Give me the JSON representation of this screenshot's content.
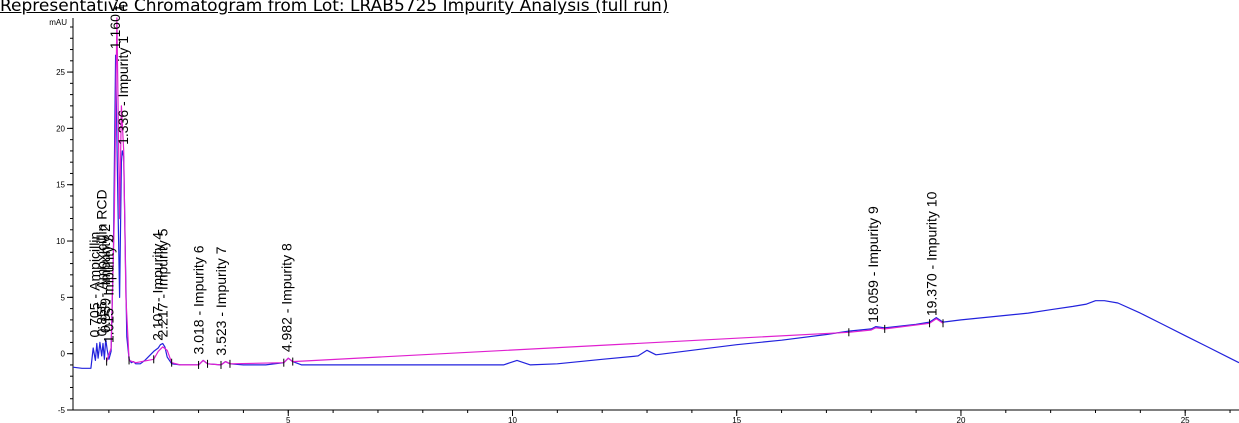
{
  "chart_data": {
    "type": "line",
    "title": "Representative Chromatogram from Lot:   LRAB5725 Impurity Analysis (full run)",
    "ylabel": "mAU",
    "xlabel": "",
    "xlim": [
      0.2,
      26.2
    ],
    "ylim": [
      -5,
      29.8
    ],
    "x_ticks": [
      5,
      10,
      15,
      20,
      25
    ],
    "y_ticks": [
      -5,
      0,
      5,
      10,
      15,
      20,
      25
    ],
    "x_minor_step": 1,
    "y_minor_step": 1,
    "grid": false,
    "series": [
      {
        "color": "#2222dd",
        "x": [
          0.2,
          0.4,
          0.6,
          0.65,
          0.7,
          0.73,
          0.76,
          0.8,
          0.84,
          0.87,
          0.9,
          0.93,
          0.96,
          1.0,
          1.05,
          1.1,
          1.15,
          1.2,
          1.24,
          1.28,
          1.3,
          1.33,
          1.37,
          1.4,
          1.45,
          1.5,
          1.55,
          1.6,
          1.65,
          1.7,
          1.8,
          2.0,
          2.1,
          2.15,
          2.2,
          2.25,
          2.3,
          2.4,
          2.6,
          3.0,
          3.1,
          3.2,
          3.5,
          3.6,
          3.7,
          4.0,
          4.5,
          4.9,
          5.0,
          5.1,
          5.3,
          6.0,
          7.0,
          8.0,
          9.0,
          9.8,
          10.1,
          10.4,
          11.0,
          12.0,
          12.8,
          13.0,
          13.2,
          14.0,
          15.0,
          16.0,
          17.0,
          17.5,
          18.0,
          18.1,
          18.3,
          19.0,
          19.3,
          19.45,
          19.6,
          20.0,
          20.5,
          21.0,
          21.5,
          22.0,
          22.5,
          22.8,
          23.0,
          23.2,
          23.5,
          24.0,
          24.5,
          25.0,
          25.5,
          26.0,
          26.2
        ],
        "y": [
          -1.2,
          -1.3,
          -1.3,
          0.5,
          -0.6,
          0.9,
          -0.4,
          1.0,
          -0.2,
          0.9,
          -0.5,
          1.3,
          0.4,
          -0.5,
          0.2,
          9.0,
          26.5,
          14.0,
          5.0,
          17.0,
          18.0,
          17.5,
          8.0,
          1.5,
          -0.5,
          -0.8,
          -0.7,
          -0.9,
          -0.9,
          -0.9,
          -0.6,
          0.2,
          0.5,
          0.8,
          0.9,
          0.6,
          -0.3,
          -0.9,
          -1.0,
          -1.0,
          -0.6,
          -0.9,
          -1.0,
          -0.7,
          -0.9,
          -1.0,
          -1.0,
          -0.8,
          -0.4,
          -0.7,
          -1.0,
          -1.0,
          -1.0,
          -1.0,
          -1.0,
          -1.0,
          -0.6,
          -1.0,
          -0.9,
          -0.5,
          -0.2,
          0.3,
          -0.1,
          0.3,
          0.8,
          1.2,
          1.7,
          2.0,
          2.2,
          2.4,
          2.3,
          2.6,
          2.8,
          3.2,
          2.8,
          3.0,
          3.2,
          3.4,
          3.6,
          3.9,
          4.2,
          4.4,
          4.7,
          4.7,
          4.5,
          3.6,
          2.6,
          1.6,
          0.6,
          -0.4,
          -0.8
        ]
      },
      {
        "color": "#e020d0",
        "x": [
          0.95,
          1.05,
          1.12,
          1.18,
          1.24,
          1.28,
          1.33,
          1.38,
          1.45,
          1.6,
          2.0,
          2.1,
          2.2,
          2.3,
          2.4,
          2.6,
          3.0,
          3.1,
          3.2,
          3.5,
          3.6,
          3.7,
          4.9,
          5.0,
          5.1,
          17.5,
          18.0,
          18.1,
          18.3,
          19.3,
          19.45,
          19.6
        ],
        "y": [
          -0.7,
          0.5,
          12.0,
          29.8,
          12.0,
          22.0,
          18.0,
          5.0,
          -0.6,
          -0.8,
          -0.5,
          0.2,
          0.6,
          0.3,
          -0.8,
          -1.0,
          -1.0,
          -0.6,
          -0.9,
          -1.0,
          -0.7,
          -0.9,
          -0.8,
          -0.4,
          -0.7,
          1.9,
          2.1,
          2.3,
          2.2,
          2.7,
          3.1,
          2.7
        ]
      }
    ],
    "peaks": [
      {
        "label": "0.705 - Ampicillin",
        "x": 0.705,
        "y": 0.9
      },
      {
        "label": "0.855 - Amoxicillin RCD",
        "x": 0.855,
        "y": 1.0
      },
      {
        "label": "0.939 - Impurity 2",
        "x": 0.939,
        "y": 1.3
      },
      {
        "label": "1.015 - Impurity 3",
        "x": 1.015,
        "y": 0.4
      },
      {
        "label": "1.160 - 4-HPG",
        "x": 1.16,
        "y": 26.5
      },
      {
        "label": "1.246 - Amoxicillin",
        "x": 1.246,
        "y": 29.8
      },
      {
        "label": "1.336 - Impurity 1",
        "x": 1.336,
        "y": 18.0
      },
      {
        "label": "2.107 - Impurity 4",
        "x": 2.107,
        "y": 0.6
      },
      {
        "label": "2.217 - Impurity 5",
        "x": 2.217,
        "y": 0.9
      },
      {
        "label": "3.018 - Impurity 6",
        "x": 3.018,
        "y": -0.6
      },
      {
        "label": "3.523 - Impurity 7",
        "x": 3.523,
        "y": -0.7
      },
      {
        "label": "4.982 - Impurity 8",
        "x": 4.982,
        "y": -0.4
      },
      {
        "label": "18.059 - Impurity 9",
        "x": 18.059,
        "y": 2.2
      },
      {
        "label": "19.370 - Impurity 10",
        "x": 19.37,
        "y": 2.8
      }
    ],
    "baseline_marks_x": [
      0.95,
      1.45,
      2.0,
      2.4,
      3.0,
      3.2,
      3.5,
      3.7,
      4.9,
      5.1,
      17.5,
      18.3,
      19.3,
      19.6
    ]
  }
}
